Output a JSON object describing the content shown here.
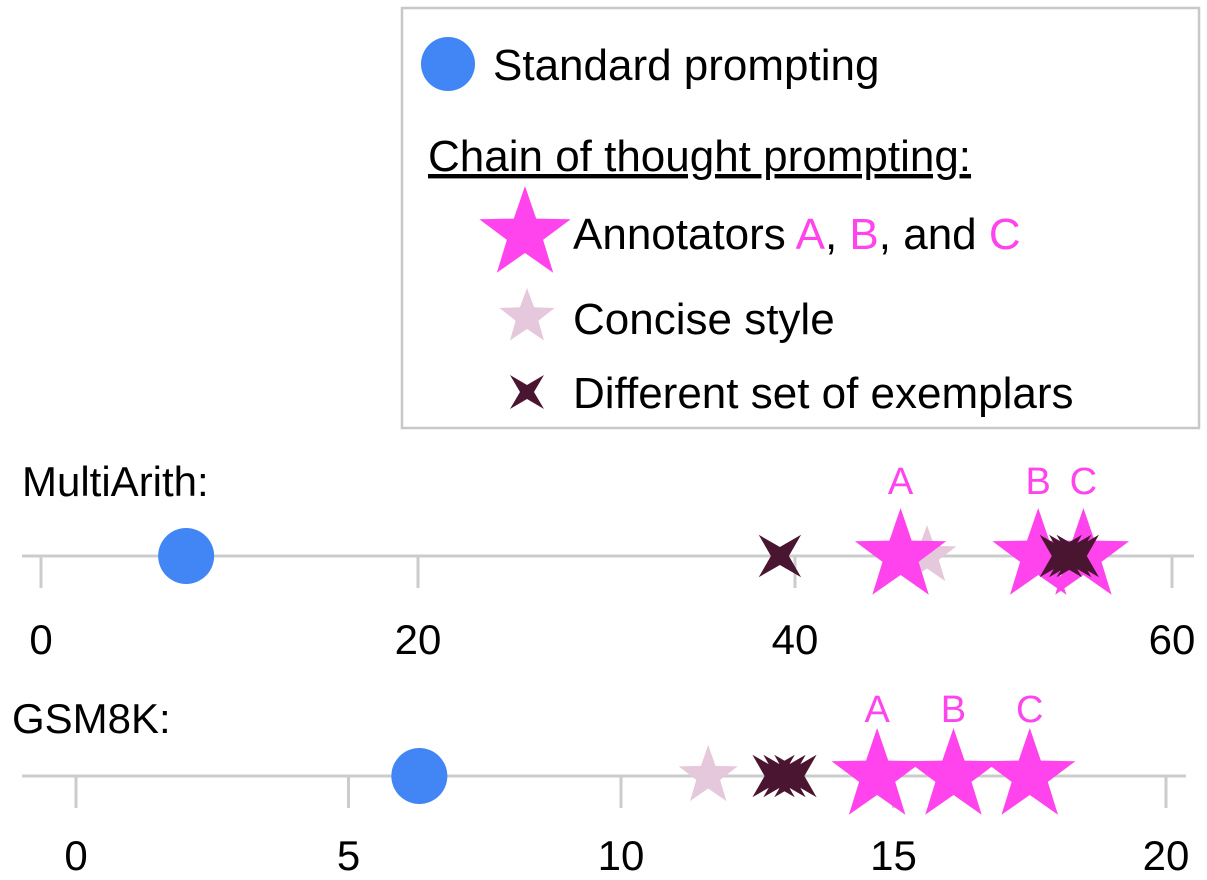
{
  "colors": {
    "standard": "#4285f4",
    "annotators": "#ff44ee",
    "concise": "#e5c8dc",
    "exemplars": "#4a1530",
    "axis": "#cccccc"
  },
  "legend": {
    "standard_label": "Standard prompting",
    "cot_heading": "Chain of thought prompting:",
    "annotators_prefix": "Annotators ",
    "annotator_a": "A",
    "sep1": ", ",
    "annotator_b": "B",
    "sep2": ", and ",
    "annotator_c": "C",
    "concise_label": "Concise style",
    "exemplars_label": "Different set of exemplars"
  },
  "chart_data": [
    {
      "type": "scatter",
      "title": "MultiArith:",
      "xlim": [
        0,
        60
      ],
      "xticks": [
        0,
        20,
        40,
        60
      ],
      "series": [
        {
          "name": "Standard prompting",
          "marker": "circle",
          "points": [
            {
              "x": 7.7
            }
          ]
        },
        {
          "name": "Annotators A, B, and C",
          "marker": "star",
          "points": [
            {
              "x": 45.6,
              "label": "A"
            },
            {
              "x": 52.9,
              "label": "B"
            },
            {
              "x": 55.3,
              "label": "C"
            }
          ]
        },
        {
          "name": "Concise style",
          "marker": "star",
          "points": [
            {
              "x": 47.0
            }
          ]
        },
        {
          "name": "Different set of exemplars",
          "marker": "cross-star",
          "points": [
            {
              "x": 39.2
            },
            {
              "x": 54.1
            },
            {
              "x": 54.6
            },
            {
              "x": 55.0
            }
          ]
        }
      ]
    },
    {
      "type": "scatter",
      "title": "GSM8K:",
      "xlim": [
        0,
        20
      ],
      "xticks": [
        0,
        5,
        10,
        15,
        20
      ],
      "series": [
        {
          "name": "Standard prompting",
          "marker": "circle",
          "points": [
            {
              "x": 6.3
            }
          ]
        },
        {
          "name": "Annotators A, B, and C",
          "marker": "star",
          "points": [
            {
              "x": 14.7,
              "label": "A"
            },
            {
              "x": 16.1,
              "label": "B"
            },
            {
              "x": 17.5,
              "label": "C"
            }
          ]
        },
        {
          "name": "Concise style",
          "marker": "star",
          "points": [
            {
              "x": 11.6
            }
          ]
        },
        {
          "name": "Different set of exemplars",
          "marker": "cross-star",
          "points": [
            {
              "x": 12.8
            },
            {
              "x": 13.0
            },
            {
              "x": 13.2
            }
          ]
        }
      ]
    }
  ]
}
